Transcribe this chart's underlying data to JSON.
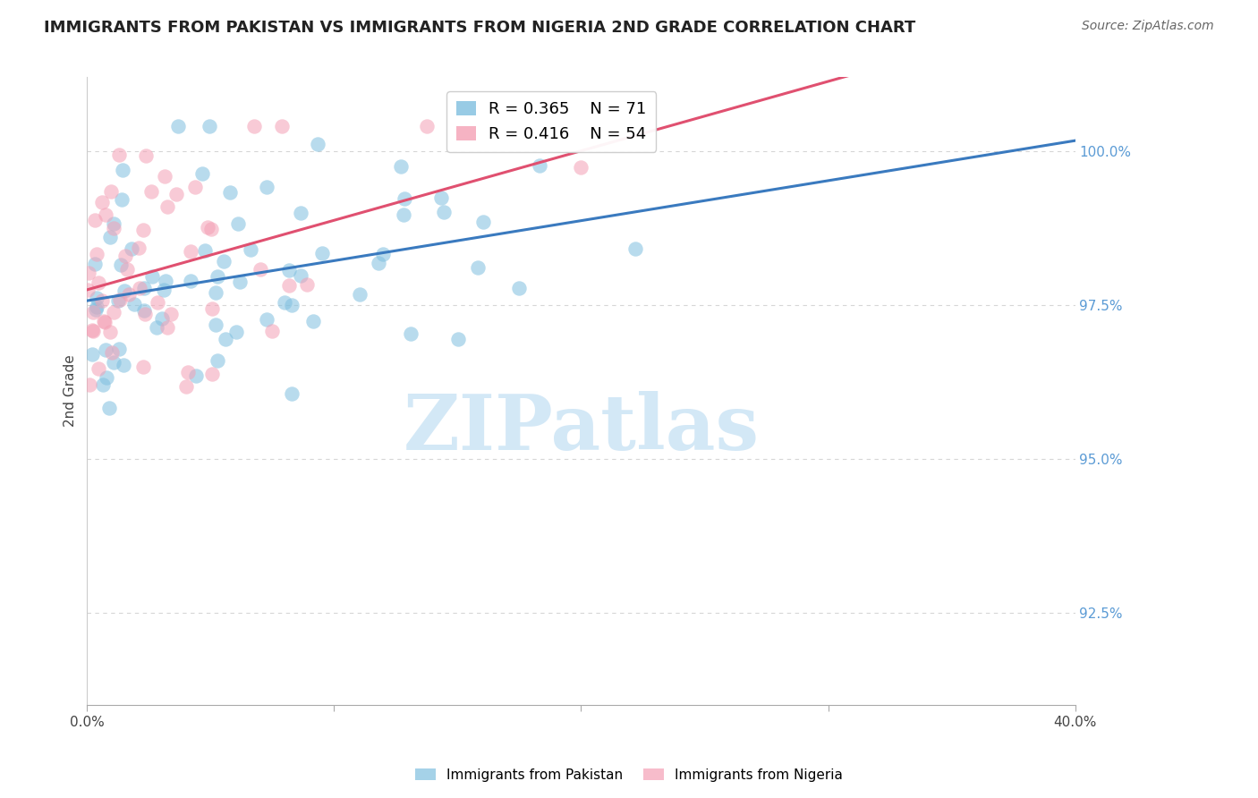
{
  "title": "IMMIGRANTS FROM PAKISTAN VS IMMIGRANTS FROM NIGERIA 2ND GRADE CORRELATION CHART",
  "source": "Source: ZipAtlas.com",
  "ylabel": "2nd Grade",
  "ylabel_right_ticks": [
    100.0,
    97.5,
    95.0,
    92.5
  ],
  "ylabel_right_labels": [
    "100.0%",
    "97.5%",
    "95.0%",
    "92.5%"
  ],
  "xlim": [
    0.0,
    40.0
  ],
  "ylim": [
    91.0,
    101.2
  ],
  "series1_label": "Immigrants from Pakistan",
  "series1_color": "#7fbfdf",
  "series1_R": 0.365,
  "series1_N": 71,
  "series2_label": "Immigrants from Nigeria",
  "series2_color": "#f4a0b5",
  "series2_R": 0.416,
  "series2_N": 54,
  "line1_color": "#3a7abf",
  "line2_color": "#e05070",
  "watermark_text": "ZIPatlas",
  "watermark_color": "#cce4f5",
  "background_color": "#ffffff",
  "grid_color": "#cccccc",
  "title_color": "#222222",
  "right_axis_color": "#5b9bd5",
  "title_fontsize": 13,
  "source_fontsize": 10,
  "tick_fontsize": 11,
  "legend_fontsize": 13
}
